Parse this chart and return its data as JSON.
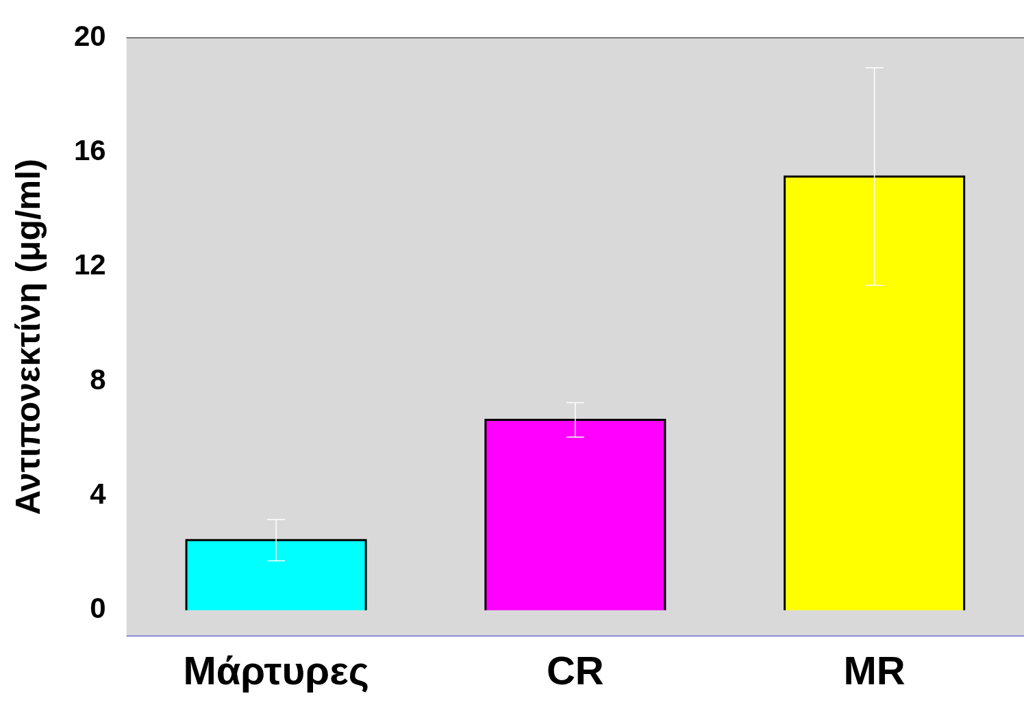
{
  "chart_data": {
    "type": "bar",
    "ylabel": "Αντιπονεκτίνη (μg/ml)",
    "categories": [
      "Μάρτυρες",
      "CR",
      "MR"
    ],
    "values": [
      2.45,
      6.65,
      15.15
    ],
    "errors": [
      0.72,
      0.6,
      3.8
    ],
    "colors": [
      "#00ffff",
      "#ff00ff",
      "#ffff00"
    ],
    "ylim": [
      -0.9,
      20
    ],
    "yticks": [
      0,
      4,
      8,
      12,
      16,
      20
    ],
    "grid": false,
    "legend": false
  }
}
